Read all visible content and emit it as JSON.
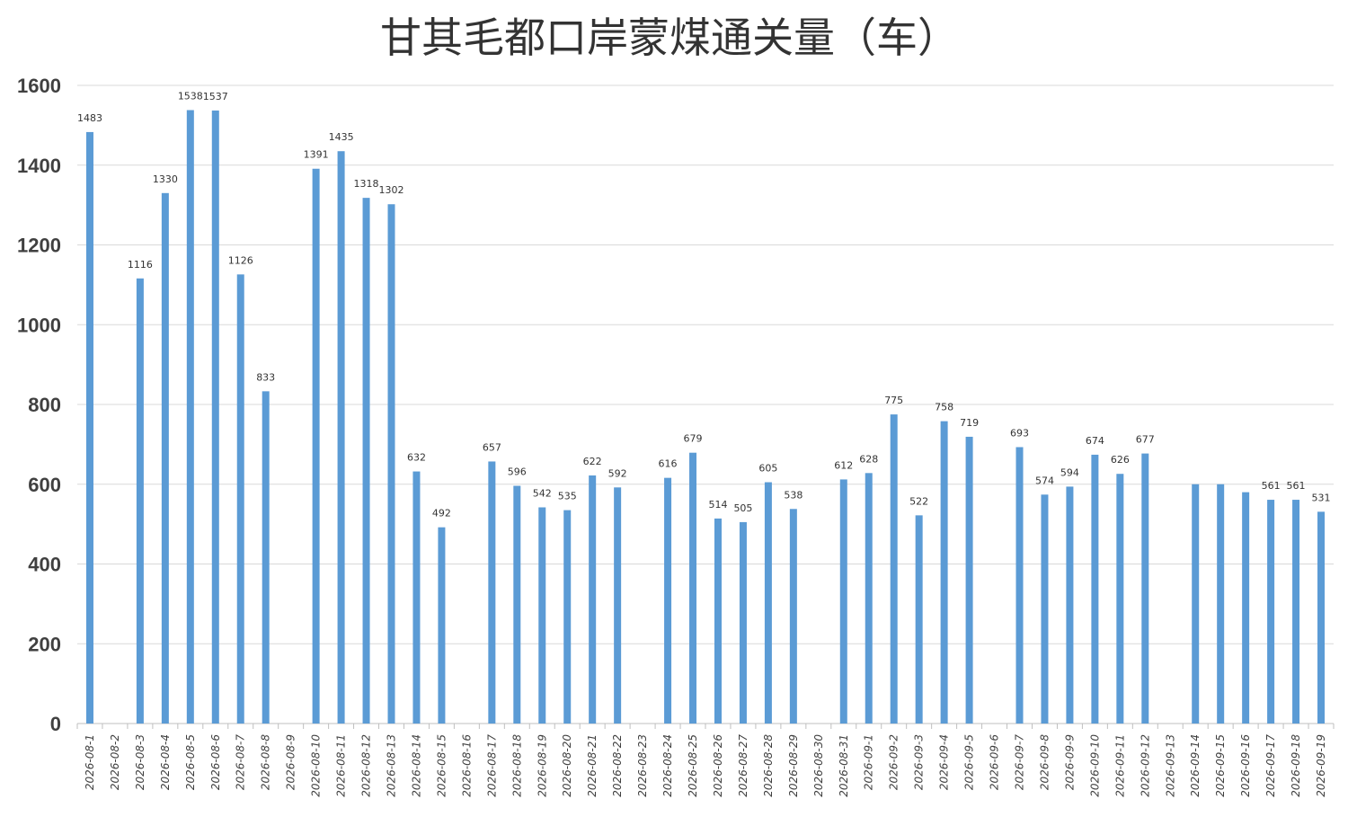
{
  "chart_data": {
    "type": "bar",
    "title": "甘其毛都口岸蒙煤通关量（车）",
    "xlabel": "",
    "ylabel": "",
    "ylim": [
      0,
      1600
    ],
    "yticks": [
      0,
      200,
      400,
      600,
      800,
      1000,
      1200,
      1400,
      1600
    ],
    "grid": true,
    "legend": "none",
    "bar_color": "#5b9bd5",
    "categories": [
      "2026-08-1",
      "2026-08-2",
      "2026-08-3",
      "2026-08-4",
      "2026-08-5",
      "2026-08-6",
      "2026-08-7",
      "2026-08-8",
      "2026-08-9",
      "2026-08-10",
      "2026-08-11",
      "2026-08-12",
      "2026-08-13",
      "2026-08-14",
      "2026-08-15",
      "2026-08-16",
      "2026-08-17",
      "2026-08-18",
      "2026-08-19",
      "2026-08-20",
      "2026-08-21",
      "2026-08-22",
      "2026-08-23",
      "2026-08-24",
      "2026-08-25",
      "2026-08-26",
      "2026-08-27",
      "2026-08-28",
      "2026-08-29",
      "2026-08-30",
      "2026-08-31",
      "2026-09-1",
      "2026-09-2",
      "2026-09-3",
      "2026-09-4",
      "2026-09-5",
      "2026-09-6",
      "2026-09-7",
      "2026-09-8",
      "2026-09-9",
      "2026-09-10",
      "2026-09-11",
      "2026-09-12",
      "2026-09-13",
      "2026-09-14",
      "2026-09-15",
      "2026-09-16",
      "2026-09-17",
      "2026-09-18",
      "2026-09-19"
    ],
    "values": [
      1483,
      null,
      1116,
      1330,
      1538,
      1537,
      1126,
      833,
      null,
      1391,
      1435,
      1318,
      1302,
      632,
      492,
      null,
      657,
      596,
      542,
      535,
      622,
      592,
      null,
      616,
      679,
      514,
      505,
      605,
      538,
      null,
      612,
      628,
      775,
      522,
      758,
      719,
      null,
      693,
      574,
      594,
      674,
      626,
      677,
      null,
      600,
      600,
      580,
      561,
      561,
      531
    ],
    "data_labels": [
      "1483",
      "",
      "1116",
      "1330",
      "1538",
      "1537",
      "1126",
      "833",
      "",
      "1391",
      "1435",
      "1318",
      "1302",
      "632",
      "492",
      "",
      "657",
      "596",
      "542",
      "535",
      "622",
      "592",
      "",
      "616",
      "679",
      "514",
      "505",
      "605",
      "538",
      "",
      "612",
      "628",
      "775",
      "522",
      "758",
      "719",
      "",
      "693",
      "574",
      "594",
      "674",
      "626",
      "677",
      "",
      "",
      "",
      "",
      "561",
      "561",
      "531"
    ]
  }
}
